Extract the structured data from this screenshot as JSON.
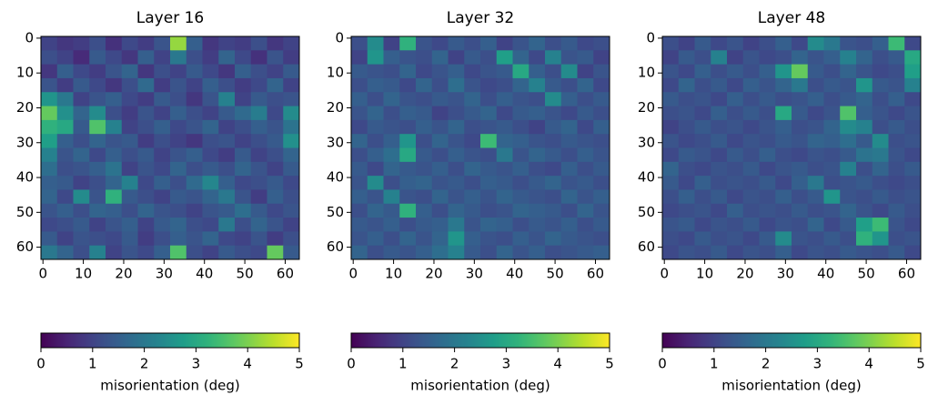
{
  "chart_data": [
    {
      "type": "heatmap",
      "title": "Layer 16",
      "cmap": "viridis",
      "x": [
        1.5,
        5.5,
        9.5,
        13.5,
        17.5,
        21.5,
        25.5,
        29.5,
        33.5,
        37.5,
        41.5,
        45.5,
        49.5,
        53.5,
        57.5,
        61.5
      ],
      "y": [
        1.5,
        5.5,
        9.5,
        13.5,
        17.5,
        21.5,
        25.5,
        29.5,
        33.5,
        37.5,
        41.5,
        45.5,
        49.5,
        53.5,
        57.5,
        61.5
      ],
      "z": [
        [
          1.0,
          0.8,
          0.9,
          1.2,
          0.7,
          1.1,
          0.9,
          1.3,
          4.2,
          1.5,
          0.8,
          1.0,
          0.9,
          1.2,
          0.8,
          1.0
        ],
        [
          1.2,
          1.0,
          0.6,
          1.4,
          1.1,
          0.8,
          1.5,
          1.0,
          2.0,
          1.2,
          0.9,
          1.6,
          1.1,
          0.7,
          1.3,
          0.9
        ],
        [
          0.8,
          1.5,
          1.1,
          0.9,
          1.3,
          1.6,
          0.8,
          1.2,
          1.0,
          1.4,
          1.1,
          0.8,
          1.5,
          1.2,
          1.0,
          1.4
        ],
        [
          1.3,
          0.9,
          1.4,
          1.1,
          0.8,
          1.2,
          1.7,
          0.9,
          1.3,
          1.0,
          1.5,
          1.2,
          0.9,
          1.1,
          1.6,
          1.0
        ],
        [
          2.6,
          2.0,
          1.0,
          1.3,
          1.5,
          1.1,
          0.9,
          1.4,
          1.2,
          0.8,
          1.3,
          2.2,
          1.0,
          1.4,
          1.2,
          1.3
        ],
        [
          3.8,
          2.5,
          1.6,
          2.4,
          1.2,
          0.9,
          1.3,
          1.0,
          1.5,
          1.2,
          1.0,
          1.4,
          1.7,
          2.1,
          1.1,
          2.4
        ],
        [
          3.2,
          3.0,
          1.4,
          3.6,
          2.2,
          1.0,
          1.2,
          1.5,
          1.1,
          1.3,
          1.6,
          1.0,
          1.2,
          1.5,
          1.3,
          1.9
        ],
        [
          2.8,
          1.5,
          1.2,
          1.6,
          1.3,
          1.4,
          0.9,
          1.2,
          1.0,
          0.8,
          1.2,
          1.3,
          1.0,
          1.2,
          1.4,
          2.5
        ],
        [
          2.2,
          1.3,
          1.6,
          1.1,
          1.5,
          1.2,
          1.4,
          1.0,
          1.3,
          1.5,
          1.1,
          0.9,
          1.4,
          1.0,
          1.2,
          1.6
        ],
        [
          1.8,
          1.2,
          1.3,
          1.5,
          1.9,
          1.0,
          1.3,
          1.1,
          1.6,
          1.2,
          1.4,
          1.2,
          1.6,
          1.3,
          1.0,
          1.4
        ],
        [
          1.5,
          1.4,
          1.0,
          1.2,
          1.6,
          2.2,
          1.1,
          1.5,
          1.2,
          1.7,
          2.3,
          1.5,
          1.1,
          1.2,
          1.4,
          1.1
        ],
        [
          1.6,
          1.1,
          2.4,
          1.3,
          3.2,
          1.4,
          1.2,
          1.0,
          1.4,
          1.3,
          1.6,
          2.0,
          1.3,
          0.9,
          1.5,
          1.2
        ],
        [
          1.3,
          1.5,
          1.2,
          1.6,
          1.5,
          1.2,
          1.6,
          1.3,
          1.2,
          1.0,
          1.3,
          1.4,
          1.8,
          1.4,
          1.1,
          1.3
        ],
        [
          1.1,
          1.2,
          1.4,
          1.0,
          1.3,
          1.5,
          1.0,
          1.4,
          1.6,
          1.2,
          1.1,
          2.0,
          1.2,
          1.6,
          1.3,
          1.0
        ],
        [
          1.4,
          1.0,
          1.3,
          1.2,
          1.1,
          1.4,
          0.9,
          1.2,
          1.5,
          1.3,
          1.6,
          1.1,
          1.0,
          1.3,
          0.9,
          1.2
        ],
        [
          2.0,
          1.6,
          1.2,
          2.2,
          1.0,
          1.3,
          1.1,
          1.5,
          3.6,
          1.2,
          1.0,
          1.4,
          1.2,
          1.1,
          3.8,
          1.4
        ]
      ],
      "xlim": [
        -0.5,
        63.5
      ],
      "ylim": [
        63.5,
        -0.5
      ],
      "xticks": [
        0,
        10,
        20,
        30,
        40,
        50,
        60
      ],
      "yticks": [
        0,
        10,
        20,
        30,
        40,
        50,
        60
      ],
      "colorbar": {
        "label": "misorientation (deg)",
        "lim": [
          0,
          5
        ],
        "ticks": [
          0,
          1,
          2,
          3,
          4,
          5
        ]
      }
    },
    {
      "type": "heatmap",
      "title": "Layer 32",
      "cmap": "viridis",
      "x": [
        1.5,
        5.5,
        9.5,
        13.5,
        17.5,
        21.5,
        25.5,
        29.5,
        33.5,
        37.5,
        41.5,
        45.5,
        49.5,
        53.5,
        57.5,
        61.5
      ],
      "y": [
        1.5,
        5.5,
        9.5,
        13.5,
        17.5,
        21.5,
        25.5,
        29.5,
        33.5,
        37.5,
        41.5,
        45.5,
        49.5,
        53.5,
        57.5,
        61.5
      ],
      "z": [
        [
          1.2,
          2.4,
          1.0,
          3.2,
          1.3,
          1.1,
          1.4,
          1.2,
          1.5,
          1.0,
          1.3,
          1.6,
          1.2,
          1.4,
          1.1,
          1.2
        ],
        [
          1.0,
          2.6,
          1.5,
          1.3,
          1.2,
          1.6,
          1.0,
          1.4,
          1.2,
          2.8,
          1.6,
          1.1,
          2.2,
          1.3,
          1.4,
          1.0
        ],
        [
          1.4,
          1.3,
          1.2,
          1.6,
          1.1,
          1.3,
          1.5,
          1.1,
          1.3,
          1.4,
          3.0,
          1.5,
          1.2,
          2.4,
          1.0,
          1.3
        ],
        [
          1.2,
          1.5,
          1.4,
          1.1,
          1.6,
          1.2,
          1.8,
          1.3,
          1.1,
          1.2,
          1.6,
          2.2,
          1.4,
          1.2,
          1.6,
          1.1
        ],
        [
          1.5,
          1.2,
          1.6,
          1.3,
          1.2,
          1.4,
          1.3,
          1.6,
          1.2,
          1.5,
          1.3,
          1.2,
          2.4,
          1.5,
          1.2,
          1.4
        ],
        [
          1.3,
          1.6,
          1.2,
          1.5,
          1.4,
          1.0,
          1.2,
          1.4,
          1.6,
          1.1,
          1.4,
          1.5,
          1.3,
          1.1,
          1.4,
          1.2
        ],
        [
          1.1,
          1.4,
          1.3,
          1.2,
          1.5,
          1.3,
          1.6,
          1.2,
          1.3,
          1.4,
          1.2,
          1.0,
          1.4,
          1.6,
          1.1,
          1.5
        ],
        [
          1.6,
          1.2,
          1.5,
          2.6,
          1.2,
          1.6,
          1.3,
          1.1,
          3.4,
          1.6,
          1.5,
          1.3,
          1.2,
          1.4,
          1.3,
          1.2
        ],
        [
          1.2,
          1.5,
          1.8,
          3.0,
          1.4,
          1.2,
          1.5,
          1.3,
          1.2,
          2.0,
          1.3,
          1.6,
          1.4,
          1.2,
          1.5,
          1.3
        ],
        [
          1.4,
          1.1,
          1.6,
          1.4,
          1.3,
          1.5,
          1.2,
          1.6,
          1.4,
          1.3,
          1.5,
          1.2,
          1.1,
          1.5,
          1.2,
          1.4
        ],
        [
          1.3,
          2.4,
          1.2,
          1.5,
          1.6,
          1.3,
          1.4,
          1.2,
          1.5,
          1.4,
          1.2,
          1.4,
          1.6,
          1.3,
          1.4,
          1.2
        ],
        [
          1.5,
          1.3,
          2.2,
          1.3,
          1.2,
          1.6,
          1.3,
          1.5,
          1.3,
          1.6,
          1.4,
          1.3,
          1.2,
          1.6,
          1.3,
          1.5
        ],
        [
          1.2,
          1.6,
          1.4,
          3.2,
          1.5,
          1.2,
          1.6,
          1.4,
          1.2,
          1.3,
          1.6,
          1.5,
          1.4,
          1.2,
          1.6,
          1.3
        ],
        [
          1.4,
          1.3,
          1.5,
          1.2,
          1.4,
          1.5,
          2.0,
          1.3,
          1.6,
          1.5,
          1.2,
          1.4,
          1.3,
          1.5,
          1.2,
          1.4
        ],
        [
          1.3,
          1.5,
          1.2,
          1.6,
          1.3,
          1.6,
          2.6,
          1.5,
          1.3,
          1.2,
          1.5,
          1.3,
          1.6,
          1.4,
          1.3,
          1.2
        ],
        [
          1.6,
          1.2,
          1.4,
          1.3,
          1.5,
          1.8,
          2.2,
          1.4,
          1.2,
          1.6,
          1.3,
          1.5,
          1.2,
          1.3,
          1.4,
          1.5
        ]
      ],
      "xlim": [
        -0.5,
        63.5
      ],
      "ylim": [
        63.5,
        -0.5
      ],
      "xticks": [
        0,
        10,
        20,
        30,
        40,
        50,
        60
      ],
      "yticks": [
        0,
        10,
        20,
        30,
        40,
        50,
        60
      ],
      "colorbar": {
        "label": "misorientation (deg)",
        "lim": [
          0,
          5
        ],
        "ticks": [
          0,
          1,
          2,
          3,
          4,
          5
        ]
      }
    },
    {
      "type": "heatmap",
      "title": "Layer 48",
      "cmap": "viridis",
      "x": [
        1.5,
        5.5,
        9.5,
        13.5,
        17.5,
        21.5,
        25.5,
        29.5,
        33.5,
        37.5,
        41.5,
        45.5,
        49.5,
        53.5,
        57.5,
        61.5
      ],
      "y": [
        1.5,
        5.5,
        9.5,
        13.5,
        17.5,
        21.5,
        25.5,
        29.5,
        33.5,
        37.5,
        41.5,
        45.5,
        49.5,
        53.5,
        57.5,
        61.5
      ],
      "z": [
        [
          1.2,
          1.0,
          1.4,
          1.1,
          1.3,
          1.0,
          1.2,
          1.5,
          1.1,
          2.4,
          2.0,
          1.3,
          1.2,
          1.5,
          3.4,
          1.1
        ],
        [
          1.0,
          1.4,
          1.2,
          2.2,
          1.0,
          1.3,
          1.1,
          1.2,
          1.6,
          1.3,
          1.5,
          2.2,
          1.6,
          1.2,
          1.4,
          3.0
        ],
        [
          1.3,
          1.1,
          1.5,
          1.2,
          1.4,
          1.2,
          1.5,
          2.6,
          3.8,
          1.4,
          1.2,
          1.6,
          1.3,
          1.1,
          1.2,
          2.8
        ],
        [
          1.1,
          1.6,
          1.2,
          1.4,
          1.1,
          1.5,
          1.3,
          1.6,
          2.0,
          1.2,
          1.4,
          1.3,
          2.6,
          1.4,
          1.3,
          2.2
        ],
        [
          1.4,
          1.2,
          1.3,
          1.1,
          1.5,
          1.2,
          1.4,
          1.2,
          1.3,
          1.5,
          1.2,
          1.4,
          1.6,
          1.2,
          1.5,
          1.1
        ],
        [
          1.2,
          1.3,
          1.1,
          1.5,
          1.2,
          1.4,
          1.2,
          3.0,
          1.4,
          1.1,
          1.3,
          3.6,
          1.5,
          1.3,
          1.1,
          1.3
        ],
        [
          1.0,
          1.2,
          1.4,
          1.2,
          1.3,
          1.1,
          1.3,
          1.5,
          1.2,
          1.3,
          1.6,
          2.4,
          2.2,
          1.2,
          1.4,
          1.2
        ],
        [
          1.3,
          1.1,
          1.2,
          1.4,
          1.1,
          1.3,
          1.2,
          1.4,
          1.3,
          1.6,
          1.5,
          1.8,
          1.4,
          2.4,
          1.2,
          1.3
        ],
        [
          1.1,
          1.4,
          1.3,
          1.1,
          1.4,
          1.2,
          1.5,
          1.2,
          1.1,
          1.3,
          1.2,
          1.4,
          1.9,
          2.0,
          1.3,
          1.1
        ],
        [
          1.6,
          1.2,
          1.1,
          1.3,
          1.2,
          1.4,
          1.1,
          1.3,
          1.4,
          1.2,
          1.3,
          2.2,
          1.2,
          1.6,
          1.2,
          1.4
        ],
        [
          1.4,
          1.1,
          1.5,
          1.2,
          1.3,
          1.2,
          1.4,
          1.1,
          1.5,
          2.0,
          1.2,
          1.3,
          1.4,
          1.2,
          1.1,
          1.2
        ],
        [
          1.2,
          1.5,
          1.2,
          1.4,
          1.1,
          1.3,
          1.2,
          1.5,
          1.2,
          1.4,
          2.6,
          1.3,
          1.2,
          1.4,
          1.2,
          1.3
        ],
        [
          1.1,
          1.2,
          1.3,
          1.1,
          1.5,
          1.2,
          1.3,
          1.2,
          1.4,
          1.2,
          1.3,
          1.6,
          1.3,
          1.1,
          1.4,
          1.2
        ],
        [
          1.3,
          1.4,
          1.1,
          1.3,
          1.2,
          1.4,
          1.1,
          1.3,
          1.2,
          1.6,
          1.1,
          1.4,
          2.8,
          3.4,
          1.3,
          1.1
        ],
        [
          1.2,
          1.1,
          1.4,
          1.2,
          1.3,
          1.1,
          1.4,
          2.4,
          1.3,
          1.2,
          1.4,
          1.2,
          3.2,
          2.6,
          1.2,
          1.3
        ],
        [
          1.1,
          1.3,
          1.2,
          1.4,
          1.1,
          1.3,
          1.2,
          1.5,
          1.1,
          1.3,
          1.2,
          1.4,
          1.3,
          1.2,
          1.4,
          1.1
        ]
      ],
      "xlim": [
        -0.5,
        63.5
      ],
      "ylim": [
        63.5,
        -0.5
      ],
      "xticks": [
        0,
        10,
        20,
        30,
        40,
        50,
        60
      ],
      "yticks": [
        0,
        10,
        20,
        30,
        40,
        50,
        60
      ],
      "colorbar": {
        "label": "misorientation (deg)",
        "lim": [
          0,
          5
        ],
        "ticks": [
          0,
          1,
          2,
          3,
          4,
          5
        ]
      }
    }
  ]
}
